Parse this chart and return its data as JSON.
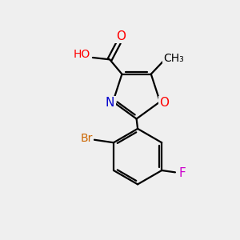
{
  "bg_color": "#efefef",
  "bond_color": "#000000",
  "bond_width": 1.6,
  "atom_colors": {
    "C": "#000000",
    "H": "#000000",
    "O": "#ff0000",
    "N": "#0000cd",
    "Br": "#cc6600",
    "F": "#cc00cc"
  },
  "font_size": 11
}
